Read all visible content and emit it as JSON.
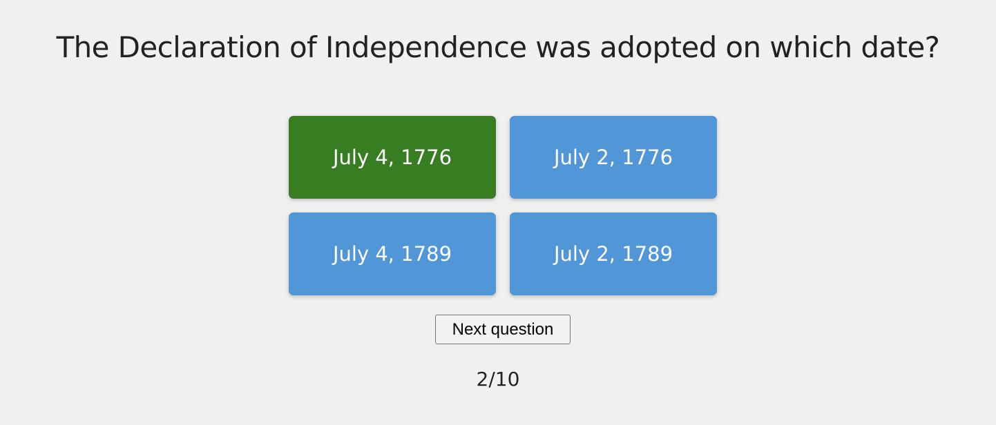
{
  "question": {
    "text": "The Declaration of Independence was adopted on which date?"
  },
  "answers": [
    {
      "label": "July 4, 1776",
      "state": "correct"
    },
    {
      "label": "July 2, 1776",
      "state": "default"
    },
    {
      "label": "July 4, 1789",
      "state": "default"
    },
    {
      "label": "July 2, 1789",
      "state": "default"
    }
  ],
  "next_button": {
    "label": "Next question"
  },
  "progress": {
    "text": "2/10",
    "current": 2,
    "total": 10
  },
  "colors": {
    "background": "#f0f0f0",
    "answer_default": "#5196d6",
    "answer_correct": "#377d22",
    "answer_text": "#ffffff",
    "question_text": "#222222"
  }
}
